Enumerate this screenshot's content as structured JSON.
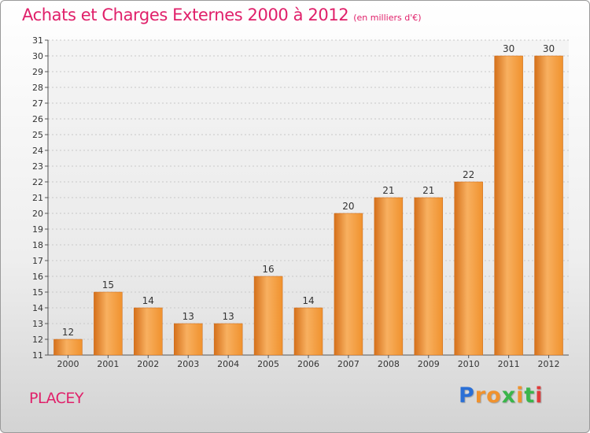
{
  "chart_data": {
    "type": "bar",
    "title": "Achats et Charges Externes 2000 à 2012",
    "subtitle": "(en milliers d'€)",
    "categories": [
      "2000",
      "2001",
      "2002",
      "2003",
      "2004",
      "2005",
      "2006",
      "2007",
      "2008",
      "2009",
      "2010",
      "2011",
      "2012"
    ],
    "values": [
      12,
      15,
      14,
      13,
      13,
      16,
      14,
      20,
      21,
      21,
      22,
      30,
      30
    ],
    "ylim": [
      11,
      31
    ],
    "yticks": [
      11,
      12,
      13,
      14,
      15,
      16,
      17,
      18,
      19,
      20,
      21,
      22,
      23,
      24,
      25,
      26,
      27,
      28,
      29,
      30,
      31
    ],
    "grid": true,
    "bar_color": "#f0922e",
    "bar_highlight": "#f8b060",
    "bar_shadow": "#d5701a"
  },
  "place_name": "PLACEY",
  "brand": {
    "letters": [
      "P",
      "r",
      "o",
      "x",
      "i",
      "t",
      "i"
    ],
    "colors": [
      "#2a6fd6",
      "#f0922e",
      "#f0922e",
      "#3ab54a",
      "#f0922e",
      "#3ab54a",
      "#e03a3a"
    ]
  }
}
